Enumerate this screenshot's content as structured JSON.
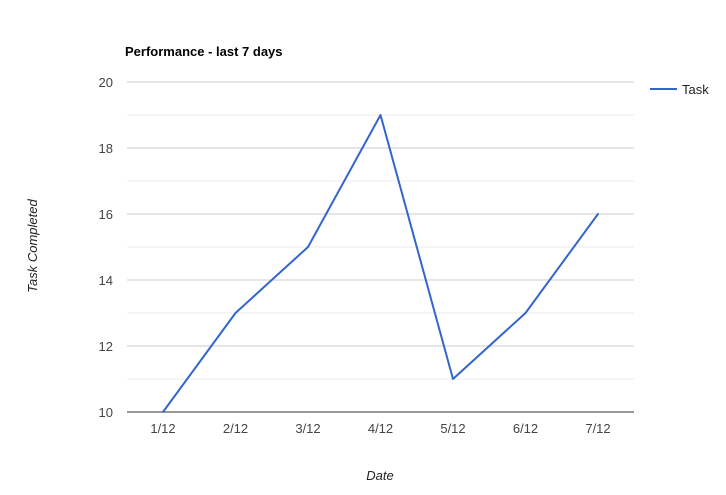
{
  "chart_data": {
    "type": "line",
    "title": "Performance - last 7 days",
    "xlabel": "Date",
    "ylabel": "Task Completed",
    "categories": [
      "1/12",
      "2/12",
      "3/12",
      "4/12",
      "5/12",
      "6/12",
      "7/12"
    ],
    "series": [
      {
        "name": "Task",
        "values": [
          10,
          13,
          15,
          19,
          11,
          13,
          16
        ],
        "color": "#3366cc"
      }
    ],
    "ylim": [
      10,
      20
    ],
    "yticks": [
      "10",
      "12",
      "14",
      "16",
      "18",
      "20"
    ],
    "grid": true,
    "legend_position": "right"
  }
}
